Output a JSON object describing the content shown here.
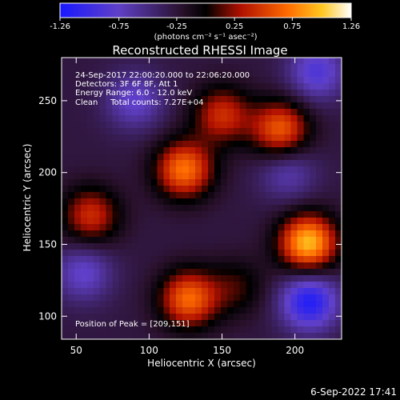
{
  "chart_data": {
    "type": "heatmap",
    "title": "Reconstructed RHESSI Image",
    "xlabel": "Heliocentric X (arcsec)",
    "ylabel": "Heliocentric Y (arcsec)",
    "xlim": [
      40,
      232
    ],
    "ylim": [
      84,
      280
    ],
    "x_ticks": [
      50,
      100,
      150,
      200
    ],
    "y_ticks": [
      100,
      150,
      200,
      250
    ],
    "colorbar": {
      "min": -1.26,
      "max": 1.26,
      "ticks": [
        "-1.26",
        "-0.75",
        "-0.25",
        "0.25",
        "0.75",
        "1.26"
      ],
      "tick_values": [
        -1.26,
        -0.75,
        -0.25,
        0.25,
        0.75,
        1.26
      ],
      "unit": "(photons cm⁻² s⁻¹ asec⁻²)"
    },
    "annotations": [
      "24-Sep-2017 22:00:20.000 to 22:06:20.000",
      "Detectors: 3F 6F 8F, Att 1",
      "Energy Range: 6.0 - 12.0 keV",
      "Clean     Total counts: 7.27E+04"
    ],
    "peak_text": "Position of Peak = [209,151]",
    "sources": [
      {
        "x": 209,
        "y": 151,
        "value": 1.26
      },
      {
        "x": 124,
        "y": 202,
        "value": 1.0
      },
      {
        "x": 127,
        "y": 112,
        "value": 0.95
      },
      {
        "x": 190,
        "y": 230,
        "value": 0.9
      },
      {
        "x": 150,
        "y": 240,
        "value": 0.7
      },
      {
        "x": 60,
        "y": 170,
        "value": 0.7
      },
      {
        "x": 160,
        "y": 120,
        "value": 0.35
      },
      {
        "x": 195,
        "y": 200,
        "value": -0.4
      },
      {
        "x": 210,
        "y": 110,
        "value": -0.9
      },
      {
        "x": 215,
        "y": 270,
        "value": -0.6
      },
      {
        "x": 90,
        "y": 250,
        "value": -0.5
      },
      {
        "x": 55,
        "y": 130,
        "value": -0.5
      }
    ]
  },
  "footer_timestamp": "6-Sep-2022 17:41"
}
